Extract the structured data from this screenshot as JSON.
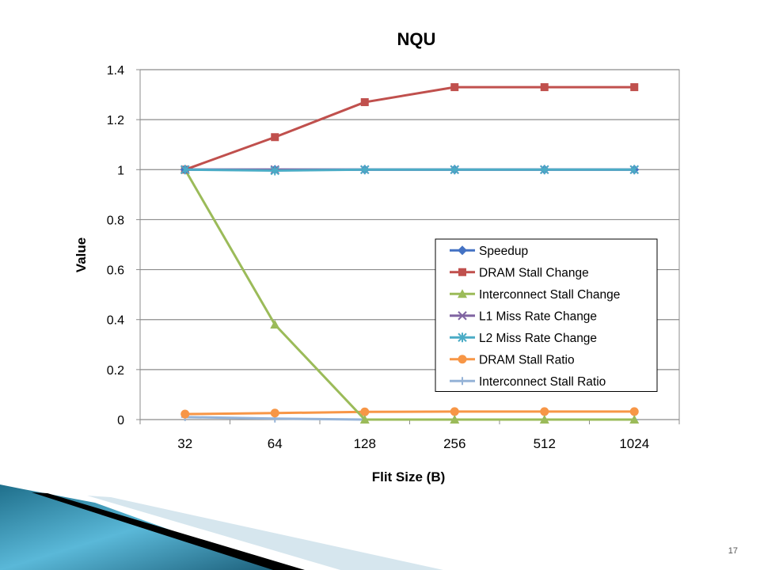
{
  "slide": {
    "page_number": "17"
  },
  "colors": {
    "grid": "#8c8c8c",
    "axis": "#8c8c8c",
    "text": "#000000",
    "footer_blue_dark": "#1f6f8b",
    "footer_blue_light": "#6fc3df",
    "footer_black": "#000000"
  },
  "chart_data": {
    "type": "line",
    "title": "NQU",
    "xlabel": "Flit Size (B)",
    "ylabel": "Value",
    "categories": [
      "32",
      "64",
      "128",
      "256",
      "512",
      "1024"
    ],
    "ylim": [
      0,
      1.4
    ],
    "yticks": [
      "0",
      "0.2",
      "0.4",
      "0.6",
      "0.8",
      "1",
      "1.2",
      "1.4"
    ],
    "grid": true,
    "legend_position": "right, inside plot area",
    "series": [
      {
        "name": "Speedup",
        "color": "#4472c4",
        "marker": "diamond",
        "values": [
          1.0,
          1.0,
          1.0,
          1.0,
          1.0,
          1.0
        ]
      },
      {
        "name": "DRAM  Stall Change",
        "color": "#c0504d",
        "marker": "square",
        "values": [
          1.0,
          1.13,
          1.27,
          1.33,
          1.33,
          1.33
        ]
      },
      {
        "name": "Interconnect  Stall Change",
        "color": "#9bbb59",
        "marker": "triangle",
        "values": [
          1.0,
          0.38,
          0.0,
          0.0,
          0.0,
          0.0
        ]
      },
      {
        "name": "L1 Miss Rate Change",
        "color": "#8064a2",
        "marker": "x",
        "values": [
          1.0,
          1.0,
          1.0,
          1.0,
          1.0,
          1.0
        ]
      },
      {
        "name": "L2 Miss Rate Change",
        "color": "#4bacc6",
        "marker": "star",
        "values": [
          1.0,
          0.996,
          1.0,
          1.0,
          1.0,
          1.0
        ]
      },
      {
        "name": "DRAM Stall Ratio",
        "color": "#f79646",
        "marker": "circle",
        "values": [
          0.022,
          0.026,
          0.031,
          0.032,
          0.032,
          0.032
        ]
      },
      {
        "name": "Interconnect Stall Ratio",
        "color": "#95b3d7",
        "marker": "plus",
        "values": [
          0.01,
          0.004,
          0.0,
          0.0,
          0.0,
          0.0
        ]
      }
    ]
  }
}
